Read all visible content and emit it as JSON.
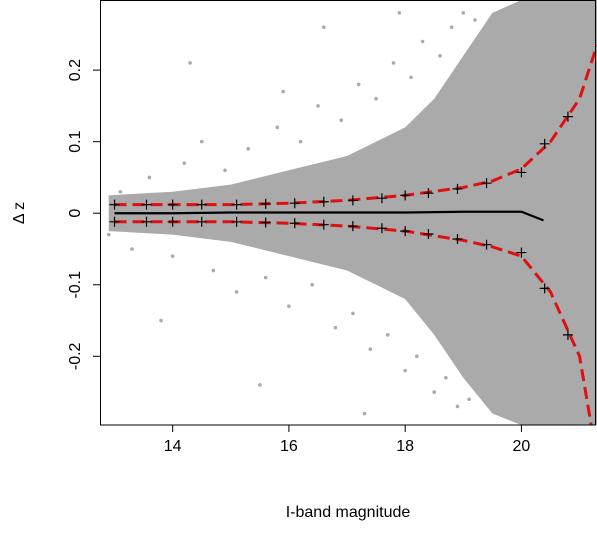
{
  "chart_data": {
    "type": "scatter",
    "xlabel": "I-band magnitude",
    "ylabel": "Δ z",
    "xlim": [
      12.75,
      21.3
    ],
    "ylim": [
      -0.296,
      0.298
    ],
    "xticks": [
      14,
      16,
      18,
      20
    ],
    "yticks": [
      -0.2,
      -0.1,
      0.0,
      0.1,
      0.2
    ],
    "series": [
      {
        "style": "band",
        "color": "#aaaaaa",
        "x": [
          12.9,
          14,
          15,
          16,
          17,
          18,
          18.5,
          19,
          19.5,
          20,
          20.5,
          21.3
        ],
        "values": [
          0.025,
          0.03,
          0.04,
          0.06,
          0.08,
          0.12,
          0.16,
          0.22,
          0.28,
          0.298,
          0.298,
          0.298
        ],
        "lower": [
          -0.025,
          -0.03,
          -0.04,
          -0.06,
          -0.08,
          -0.12,
          -0.17,
          -0.23,
          -0.28,
          -0.296,
          -0.296,
          -0.296
        ]
      },
      {
        "style": "points",
        "color": "#aaaaaa",
        "x": [
          13.1,
          13.6,
          14.2,
          14.5,
          14.9,
          15.3,
          15.8,
          16.2,
          16.5,
          16.9,
          17.2,
          17.5,
          17.8,
          18.1,
          18.3,
          18.6,
          18.8,
          19.0,
          19.2,
          12.9,
          13.3,
          14.0,
          14.7,
          15.1,
          15.6,
          16.0,
          16.4,
          16.8,
          17.1,
          17.4,
          17.7,
          18.0,
          18.2,
          18.5,
          18.7,
          18.9,
          19.1,
          14.3,
          15.5,
          16.6,
          17.9,
          13.8,
          15.9,
          17.3
        ],
        "values": [
          0.03,
          0.05,
          0.07,
          0.1,
          0.06,
          0.09,
          0.12,
          0.1,
          0.15,
          0.13,
          0.18,
          0.16,
          0.21,
          0.19,
          0.24,
          0.22,
          0.26,
          0.28,
          0.27,
          -0.03,
          -0.05,
          -0.06,
          -0.08,
          -0.11,
          -0.09,
          -0.13,
          -0.1,
          -0.16,
          -0.14,
          -0.19,
          -0.17,
          -0.22,
          -0.2,
          -0.25,
          -0.23,
          -0.27,
          -0.26,
          0.21,
          -0.24,
          0.26,
          0.28,
          -0.15,
          0.17,
          -0.28
        ]
      },
      {
        "style": "line",
        "color": "#000000",
        "x": [
          13,
          14,
          15,
          16,
          17,
          18,
          19,
          19.5,
          20,
          20.38
        ],
        "values": [
          0.0,
          0.0,
          0.001,
          0.001,
          0.001,
          0.001,
          0.002,
          0.002,
          0.002,
          -0.01
        ]
      },
      {
        "style": "dashed",
        "color": "#dd1111",
        "x": [
          13,
          14,
          15,
          16,
          17,
          18,
          19,
          19.5,
          20,
          20.5,
          21,
          21.3
        ],
        "values": [
          0.012,
          0.012,
          0.012,
          0.014,
          0.018,
          0.025,
          0.036,
          0.045,
          0.062,
          0.1,
          0.16,
          0.235
        ]
      },
      {
        "style": "dashed",
        "color": "#dd1111",
        "x": [
          13,
          14,
          15,
          16,
          17,
          18,
          19,
          19.5,
          20,
          20.5,
          21,
          21.2
        ],
        "values": [
          -0.012,
          -0.012,
          -0.012,
          -0.014,
          -0.018,
          -0.025,
          -0.038,
          -0.047,
          -0.06,
          -0.11,
          -0.2,
          -0.296
        ]
      },
      {
        "style": "plus",
        "color": "#000000",
        "x": [
          13,
          13.55,
          14,
          14.5,
          15.1,
          15.6,
          16.1,
          16.6,
          17.1,
          17.6,
          18,
          18.4,
          18.9,
          19.4,
          20,
          20.4,
          20.8
        ],
        "values": [
          0.012,
          0.012,
          0.012,
          0.012,
          0.012,
          0.013,
          0.014,
          0.016,
          0.018,
          0.021,
          0.025,
          0.028,
          0.034,
          0.042,
          0.057,
          0.097,
          0.135
        ]
      },
      {
        "style": "plus",
        "color": "#000000",
        "x": [
          13,
          13.55,
          14,
          14.5,
          15.1,
          15.6,
          16.1,
          16.6,
          17.1,
          17.6,
          18,
          18.4,
          18.9,
          19.4,
          20,
          20.4,
          20.8
        ],
        "values": [
          -0.012,
          -0.012,
          -0.012,
          -0.012,
          -0.012,
          -0.013,
          -0.014,
          -0.016,
          -0.018,
          -0.021,
          -0.025,
          -0.029,
          -0.036,
          -0.044,
          -0.055,
          -0.105,
          -0.17
        ]
      }
    ]
  }
}
